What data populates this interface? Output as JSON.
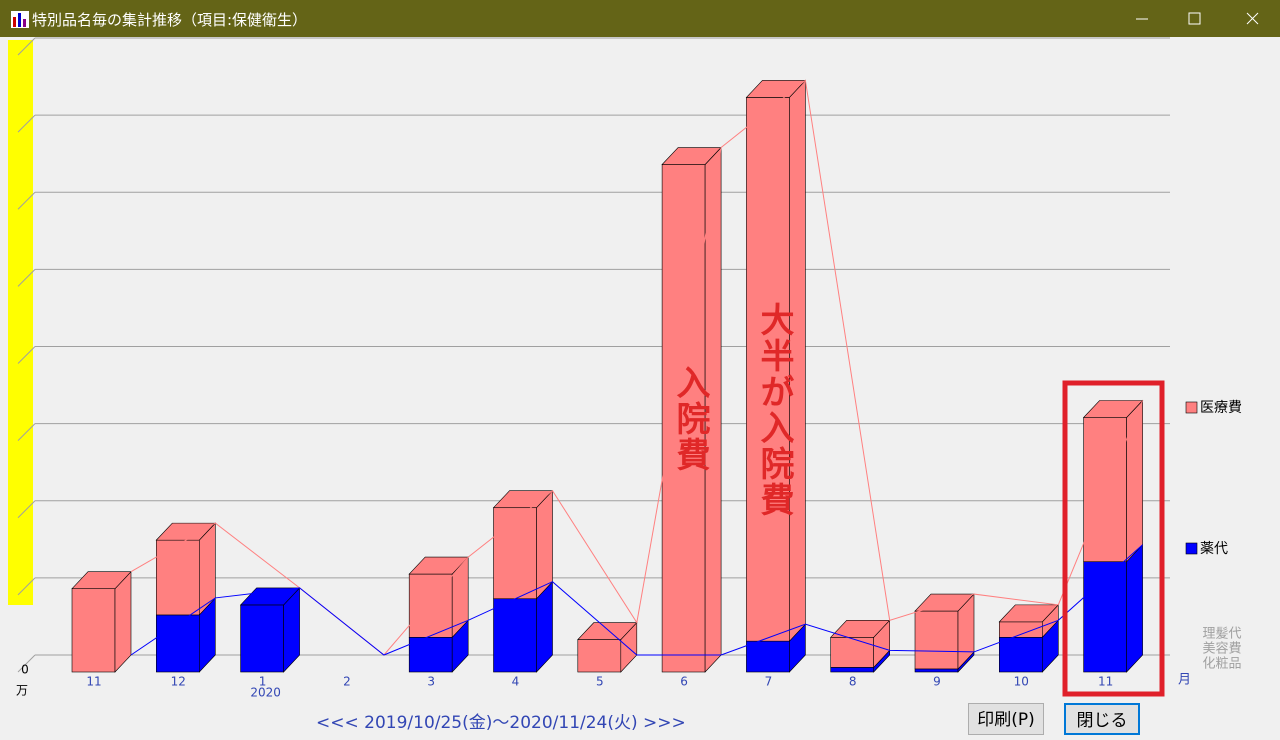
{
  "window": {
    "title": "特別品名毎の集計推移（項目:保健衛生）"
  },
  "chart_data": {
    "type": "bar",
    "stacked": true,
    "categories": [
      "11",
      "12",
      "1",
      "2",
      "3",
      "4",
      "5",
      "6",
      "7",
      "8",
      "9",
      "10",
      "11"
    ],
    "year_label": "2020",
    "series": [
      {
        "name": "医療費",
        "color": "#ff8080",
        "values": [
          1.08,
          0.97,
          0,
          0,
          0.82,
          1.18,
          0.42,
          6.58,
          7.05,
          0.39,
          0.75,
          0.2,
          1.87
        ]
      },
      {
        "name": "薬代",
        "color": "#0000ff",
        "values": [
          0,
          0.74,
          0.87,
          0,
          0.45,
          0.95,
          0,
          0,
          0.4,
          0.06,
          0.04,
          0.45,
          1.43
        ]
      }
    ],
    "other_legend": [
      "理髪代",
      "美容費",
      "化粧品"
    ],
    "y_unit": "万",
    "x_unit": "月",
    "ylim": [
      0,
      8
    ],
    "yticks": [
      0
    ],
    "gridlines": [
      1,
      2,
      3,
      4,
      5,
      6,
      7,
      8
    ],
    "grid": true,
    "annotations": [
      "入院費",
      "大半が入院費"
    ]
  },
  "period": "<<< 2019/10/25(金)～2020/11/24(火) >>>",
  "buttons": [
    "印刷(P)",
    "閉じる"
  ]
}
